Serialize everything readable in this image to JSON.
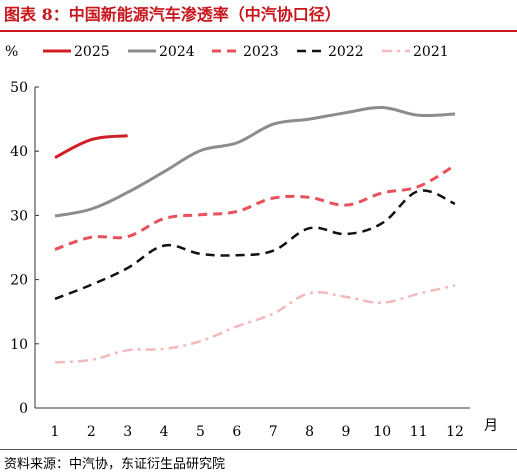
{
  "figure": {
    "title": "图表 8：中国新能源汽车渗透率（中汽协口径）",
    "source": "资料来源：中汽协，东证衍生品研究院"
  },
  "chart_data": {
    "type": "line",
    "ylabel": "%",
    "xlabel": "月",
    "ylim": [
      0,
      50
    ],
    "yticks": [
      0,
      10,
      20,
      30,
      40,
      50
    ],
    "categories": [
      "1",
      "2",
      "3",
      "4",
      "5",
      "6",
      "7",
      "8",
      "9",
      "10",
      "11",
      "12"
    ],
    "legend_position": "top",
    "grid": false,
    "series": [
      {
        "name": "2025",
        "color": "#d11f26",
        "dash": "solid",
        "width": 3,
        "values": [
          39.0,
          41.8,
          42.4,
          null,
          null,
          null,
          null,
          null,
          null,
          null,
          null,
          null
        ]
      },
      {
        "name": "2024",
        "color": "#8c8c8c",
        "dash": "solid",
        "width": 3,
        "values": [
          29.9,
          31.0,
          33.6,
          36.8,
          40.1,
          41.3,
          44.2,
          45.0,
          46.0,
          46.8,
          45.6,
          45.8
        ]
      },
      {
        "name": "2023",
        "color": "#e8505b",
        "dash": "dashed",
        "width": 3,
        "values": [
          24.7,
          26.6,
          26.7,
          29.5,
          30.1,
          30.6,
          32.7,
          32.8,
          31.6,
          33.5,
          34.5,
          37.8
        ]
      },
      {
        "name": "2022",
        "color": "#111111",
        "dash": "dashed",
        "width": 2.5,
        "values": [
          17.0,
          19.2,
          21.8,
          25.3,
          24.0,
          23.8,
          24.5,
          28.0,
          27.1,
          28.8,
          33.8,
          31.8
        ]
      },
      {
        "name": "2021",
        "color": "#f3b9bd",
        "dash": "dashdot",
        "width": 2.5,
        "values": [
          7.1,
          7.5,
          9.0,
          9.2,
          10.4,
          12.7,
          14.7,
          17.9,
          17.3,
          16.4,
          17.8,
          19.1
        ]
      }
    ]
  }
}
